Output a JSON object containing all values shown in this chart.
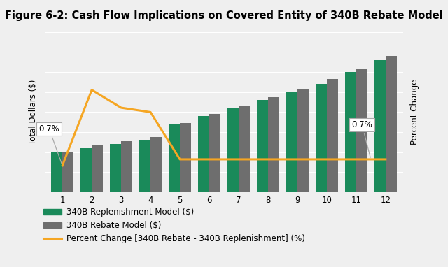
{
  "title": "Figure 6-2: Cash Flow Implications on Covered Entity of 340B Rebate Model",
  "ylabel_left": "Total Dollars ($)",
  "ylabel_right": "Percent Change",
  "categories": [
    1,
    2,
    3,
    4,
    5,
    6,
    7,
    8,
    9,
    10,
    11,
    12
  ],
  "replenishment": [
    100,
    110,
    120,
    130,
    170,
    190,
    210,
    230,
    250,
    270,
    300,
    330
  ],
  "rebate": [
    100,
    119,
    128,
    138,
    172,
    195,
    215,
    237,
    258,
    282,
    308,
    340
  ],
  "percent_change_vals": [
    0.0,
    8.5,
    6.5,
    6.0,
    0.7,
    0.7,
    0.7,
    0.7,
    0.7,
    0.7,
    0.7,
    0.7
  ],
  "green_color": "#1a8a5a",
  "gray_color": "#6e6e6e",
  "orange_color": "#f5a623",
  "bg_color": "#efefef",
  "bar_width": 0.38,
  "legend_labels": [
    "340B Replenishment Model ($)",
    "340B Rebate Model ($)",
    "Percent Change [340B Rebate - 340B Replenishment] (%)"
  ],
  "annotation1_text": "0.7%",
  "annotation2_text": "0.7%",
  "title_fontsize": 10.5,
  "axis_label_fontsize": 8.5,
  "tick_fontsize": 8.5,
  "legend_fontsize": 8.5
}
